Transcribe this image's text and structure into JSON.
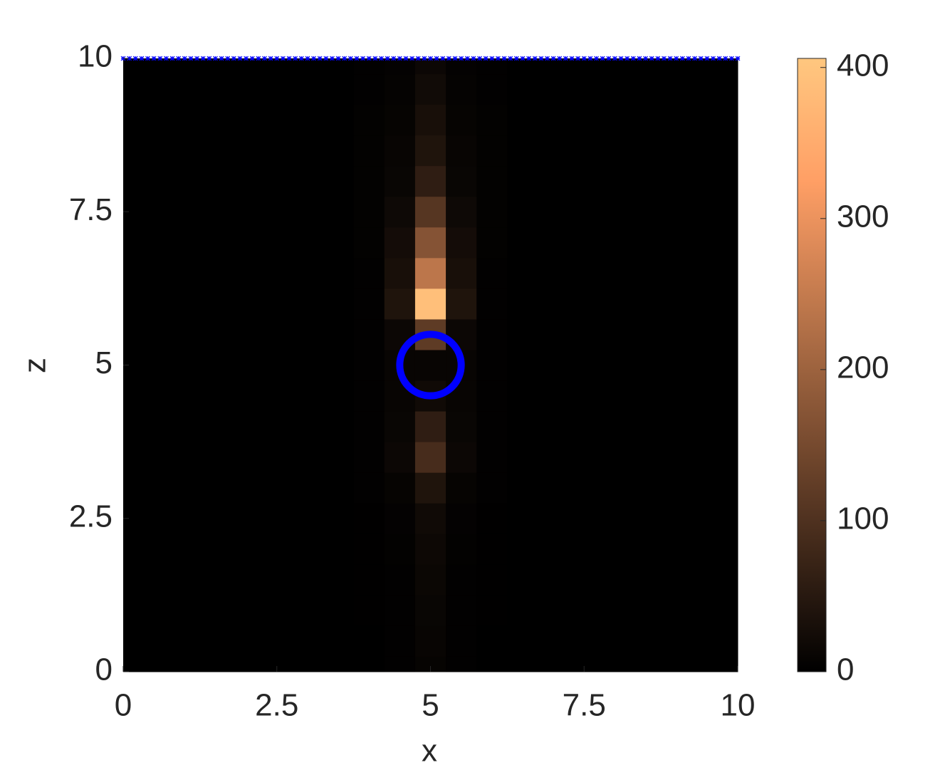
{
  "chart_data": {
    "type": "heatmap",
    "xlabel": "x",
    "ylabel": "z",
    "xlim": [
      0,
      10
    ],
    "ylim": [
      0,
      10
    ],
    "xticks": [
      0,
      2.5,
      5,
      7.5,
      10
    ],
    "yticks": [
      0,
      2.5,
      5,
      7.5,
      10
    ],
    "x": [
      0,
      0.5,
      1,
      1.5,
      2,
      2.5,
      3,
      3.5,
      4,
      4.5,
      5,
      5.5,
      6,
      6.5,
      7,
      7.5,
      8,
      8.5,
      9,
      9.5,
      10
    ],
    "y": [
      0,
      0.5,
      1,
      1.5,
      2,
      2.5,
      3,
      3.5,
      4,
      4.5,
      5,
      5.5,
      6,
      6.5,
      7,
      7.5,
      8,
      8.5,
      9,
      9.5,
      10
    ],
    "values": [
      [
        0,
        0,
        0,
        0,
        0,
        0,
        0,
        0,
        0,
        2,
        8,
        2,
        0,
        0,
        0,
        0,
        0,
        0,
        0,
        0,
        0
      ],
      [
        0,
        0,
        0,
        0,
        0,
        0,
        0,
        0,
        0,
        2,
        10,
        2,
        0,
        0,
        0,
        0,
        0,
        0,
        0,
        0,
        0
      ],
      [
        0,
        0,
        0,
        0,
        0,
        0,
        0,
        0,
        1,
        3,
        12,
        3,
        1,
        0,
        0,
        0,
        0,
        0,
        0,
        0,
        0
      ],
      [
        0,
        0,
        0,
        0,
        0,
        0,
        0,
        0,
        1,
        3,
        14,
        3,
        1,
        0,
        0,
        0,
        0,
        0,
        0,
        0,
        0
      ],
      [
        0,
        0,
        0,
        0,
        0,
        0,
        0,
        0,
        1,
        4,
        16,
        4,
        1,
        0,
        0,
        0,
        0,
        0,
        0,
        0,
        0
      ],
      [
        0,
        0,
        0,
        0,
        0,
        0,
        0,
        0,
        1,
        5,
        20,
        5,
        1,
        0,
        0,
        0,
        0,
        0,
        0,
        0,
        0
      ],
      [
        0,
        0,
        0,
        0,
        0,
        0,
        0,
        0,
        2,
        8,
        40,
        8,
        2,
        0,
        0,
        0,
        0,
        0,
        0,
        0,
        0
      ],
      [
        0,
        0,
        0,
        0,
        0,
        0,
        0,
        0,
        2,
        15,
        90,
        15,
        2,
        0,
        0,
        0,
        0,
        0,
        0,
        0,
        0
      ],
      [
        0,
        0,
        0,
        0,
        0,
        0,
        0,
        0,
        2,
        12,
        60,
        12,
        2,
        0,
        0,
        0,
        0,
        0,
        0,
        0,
        0
      ],
      [
        0,
        0,
        0,
        0,
        0,
        0,
        0,
        0,
        2,
        10,
        20,
        10,
        2,
        0,
        0,
        0,
        0,
        0,
        0,
        0,
        0
      ],
      [
        0,
        0,
        0,
        0,
        0,
        0,
        0,
        0,
        2,
        10,
        10,
        10,
        2,
        0,
        0,
        0,
        0,
        0,
        0,
        0,
        0
      ],
      [
        0,
        0,
        0,
        0,
        0,
        0,
        0,
        0,
        2,
        15,
        120,
        15,
        2,
        0,
        0,
        0,
        0,
        0,
        0,
        0,
        0
      ],
      [
        0,
        0,
        0,
        0,
        0,
        0,
        0,
        0,
        3,
        40,
        390,
        40,
        3,
        0,
        0,
        0,
        0,
        0,
        0,
        0,
        0
      ],
      [
        0,
        0,
        0,
        0,
        0,
        0,
        0,
        0,
        3,
        30,
        240,
        30,
        3,
        0,
        0,
        0,
        0,
        0,
        0,
        0,
        0
      ],
      [
        0,
        0,
        0,
        0,
        0,
        0,
        0,
        0,
        4,
        25,
        170,
        25,
        4,
        0,
        0,
        0,
        0,
        0,
        0,
        0,
        0
      ],
      [
        0,
        0,
        0,
        0,
        0,
        0,
        0,
        0,
        4,
        18,
        110,
        18,
        4,
        0,
        0,
        0,
        0,
        0,
        0,
        0,
        0
      ],
      [
        0,
        0,
        0,
        0,
        0,
        0,
        0,
        0,
        4,
        12,
        60,
        12,
        4,
        0,
        0,
        0,
        0,
        0,
        0,
        0,
        0
      ],
      [
        0,
        0,
        0,
        0,
        0,
        0,
        0,
        0,
        4,
        10,
        40,
        10,
        4,
        0,
        0,
        0,
        0,
        0,
        0,
        0,
        0
      ],
      [
        0,
        0,
        0,
        0,
        0,
        0,
        0,
        0,
        4,
        8,
        30,
        8,
        4,
        0,
        0,
        0,
        0,
        0,
        0,
        0,
        0
      ],
      [
        0,
        0,
        0,
        0,
        0,
        0,
        0,
        0,
        3,
        6,
        22,
        6,
        3,
        0,
        0,
        0,
        0,
        0,
        0,
        0,
        0
      ],
      [
        0,
        0,
        0,
        0,
        0,
        0,
        0,
        0,
        3,
        5,
        15,
        5,
        3,
        0,
        0,
        0,
        0,
        0,
        0,
        0,
        0
      ]
    ],
    "colormap": "copper",
    "clim": [
      0,
      406
    ],
    "cticks": [
      0,
      100,
      200,
      300,
      400
    ],
    "circle": {
      "cx": 5,
      "cz": 5,
      "r": 0.5,
      "color": "#0000ff"
    },
    "markers": {
      "color": "#0000ff",
      "z": 10,
      "x": [
        0,
        0.1,
        0.2,
        0.3,
        0.4,
        0.5,
        0.6,
        0.7,
        0.8,
        0.9,
        1,
        1.1,
        1.2,
        1.3,
        1.4,
        1.5,
        1.6,
        1.7,
        1.8,
        1.9,
        2,
        2.1,
        2.2,
        2.3,
        2.4,
        2.5,
        2.6,
        2.7,
        2.8,
        2.9,
        3,
        3.1,
        3.2,
        3.3,
        3.4,
        3.5,
        3.6,
        3.7,
        3.8,
        3.9,
        4,
        4.1,
        4.2,
        4.3,
        4.4,
        4.5,
        4.6,
        4.7,
        4.8,
        4.9,
        5,
        5.1,
        5.2,
        5.3,
        5.4,
        5.5,
        5.6,
        5.7,
        5.8,
        5.9,
        6,
        6.1,
        6.2,
        6.3,
        6.4,
        6.5,
        6.6,
        6.7,
        6.8,
        6.9,
        7,
        7.1,
        7.2,
        7.3,
        7.4,
        7.5,
        7.6,
        7.7,
        7.8,
        7.9,
        8,
        8.1,
        8.2,
        8.3,
        8.4,
        8.5,
        8.6,
        8.7,
        8.8,
        8.9,
        9,
        9.1,
        9.2,
        9.3,
        9.4,
        9.5,
        9.6,
        9.7,
        9.8,
        9.9,
        10
      ]
    }
  }
}
